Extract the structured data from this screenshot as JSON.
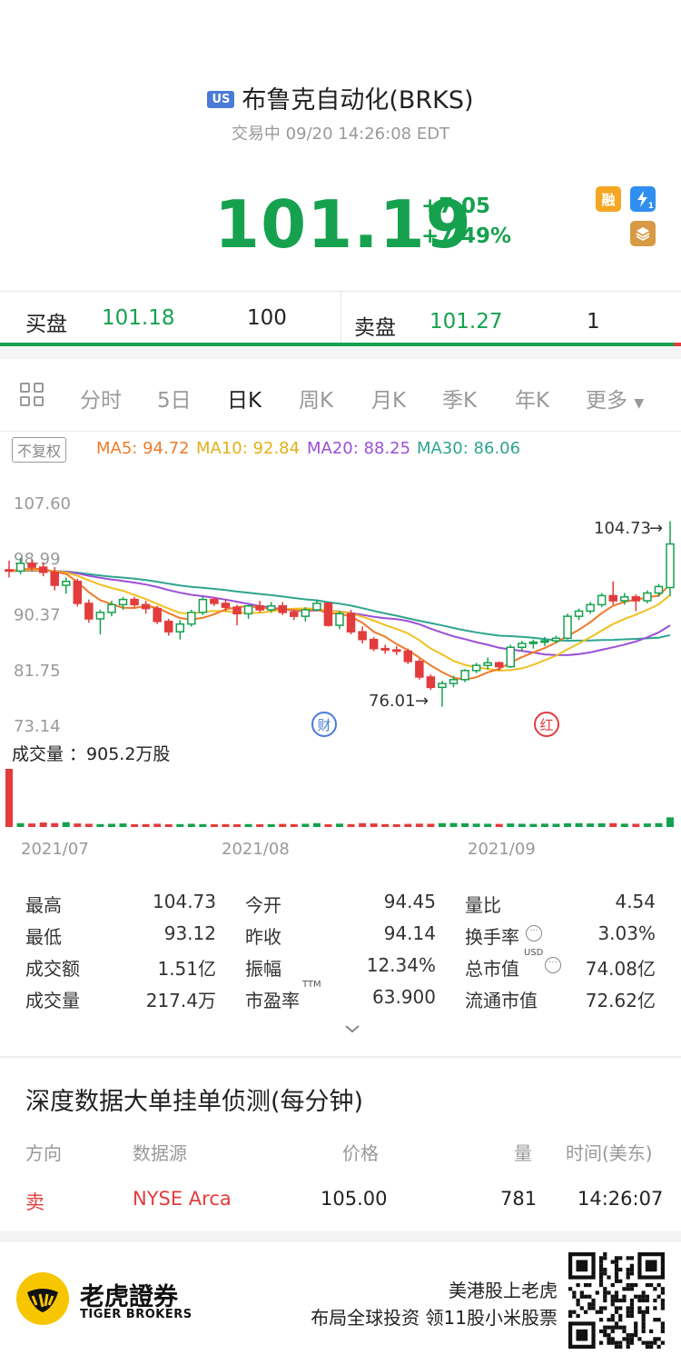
{
  "header": {
    "market_badge": "US",
    "title": "布鲁克自动化(BRKS)",
    "status": "交易中 09/20 14:26:08 EDT"
  },
  "quote": {
    "price": "101.19",
    "change": "+7.05",
    "change_pct": "+7.49%",
    "badges": {
      "margin": "融",
      "lightning": "1"
    }
  },
  "order_book": {
    "bid_label": "买盘",
    "bid_price": "101.18",
    "bid_size": "100",
    "ask_label": "卖盘",
    "ask_price": "101.27",
    "ask_size": "1"
  },
  "tabs": [
    {
      "label": "分时"
    },
    {
      "label": "5日"
    },
    {
      "label": "日K"
    },
    {
      "label": "周K"
    },
    {
      "label": "月K"
    },
    {
      "label": "季K"
    },
    {
      "label": "年K"
    },
    {
      "label": "更多"
    }
  ],
  "ma": {
    "adjust_button": "不复权",
    "ma5": "MA5: 94.72",
    "ma10": "MA10: 92.84",
    "ma20": "MA20: 88.25",
    "ma30": "MA30: 86.06",
    "colors": {
      "ma5": "#f07a2a",
      "ma10": "#f0c020",
      "ma20": "#9b4fd6",
      "ma30": "#2ea58f"
    }
  },
  "chart_data": {
    "type": "candlestick",
    "ylim": [
      73.14,
      107.6
    ],
    "y_ticks": [
      "107.60",
      "98.99",
      "90.37",
      "81.75",
      "73.14"
    ],
    "x_ticks": [
      "2021/07",
      "2021/08",
      "2021/09"
    ],
    "annotations": {
      "high_label": "104.73",
      "low_label": "76.01",
      "event_cai": "财",
      "event_hong": "红"
    },
    "volume_label": "成交量 ：905.2万股",
    "candles": [
      [
        97.2,
        98.6,
        96.0,
        97.0
      ],
      [
        97.0,
        99.0,
        96.5,
        98.2
      ],
      [
        98.2,
        98.8,
        97.0,
        97.6
      ],
      [
        97.6,
        98.4,
        96.2,
        96.8
      ],
      [
        96.8,
        97.6,
        94.0,
        94.8
      ],
      [
        94.8,
        96.0,
        93.5,
        95.4
      ],
      [
        95.4,
        95.8,
        91.5,
        92.0
      ],
      [
        92.0,
        92.6,
        89.0,
        89.6
      ],
      [
        89.6,
        91.0,
        87.2,
        90.6
      ],
      [
        90.6,
        92.4,
        90.0,
        91.8
      ],
      [
        91.8,
        93.0,
        91.0,
        92.6
      ],
      [
        92.6,
        93.0,
        91.4,
        91.8
      ],
      [
        91.8,
        92.4,
        90.4,
        91.2
      ],
      [
        91.2,
        91.6,
        88.8,
        89.2
      ],
      [
        89.2,
        89.6,
        87.0,
        87.6
      ],
      [
        87.6,
        89.4,
        86.4,
        88.8
      ],
      [
        88.8,
        91.0,
        88.4,
        90.6
      ],
      [
        90.6,
        93.0,
        90.2,
        92.6
      ],
      [
        92.6,
        93.0,
        91.6,
        92.0
      ],
      [
        92.0,
        92.6,
        90.8,
        91.4
      ],
      [
        91.4,
        91.8,
        88.6,
        90.4
      ],
      [
        90.4,
        91.8,
        89.6,
        91.6
      ],
      [
        91.6,
        92.4,
        90.6,
        91.0
      ],
      [
        91.0,
        92.2,
        90.6,
        91.6
      ],
      [
        91.6,
        92.2,
        90.2,
        90.6
      ],
      [
        90.6,
        91.0,
        89.4,
        90.0
      ],
      [
        90.0,
        91.4,
        89.2,
        91.0
      ],
      [
        91.0,
        92.6,
        90.8,
        92.0
      ],
      [
        92.0,
        92.2,
        88.4,
        88.6
      ],
      [
        88.6,
        90.8,
        88.0,
        90.4
      ],
      [
        90.4,
        91.0,
        87.2,
        87.6
      ],
      [
        87.6,
        88.4,
        85.8,
        86.4
      ],
      [
        86.4,
        86.8,
        84.6,
        85.0
      ],
      [
        85.0,
        85.6,
        84.2,
        84.8
      ],
      [
        84.8,
        85.4,
        84.0,
        84.6
      ],
      [
        84.6,
        85.0,
        82.6,
        83.0
      ],
      [
        83.0,
        83.4,
        80.2,
        80.6
      ],
      [
        80.6,
        81.0,
        78.6,
        79.0
      ],
      [
        79.0,
        80.0,
        76.01,
        79.6
      ],
      [
        79.6,
        80.8,
        79.0,
        80.2
      ],
      [
        80.2,
        81.8,
        79.8,
        81.6
      ],
      [
        81.6,
        82.8,
        81.2,
        82.4
      ],
      [
        82.4,
        83.6,
        81.8,
        82.8
      ],
      [
        82.8,
        83.0,
        81.6,
        82.2
      ],
      [
        82.2,
        85.6,
        82.0,
        85.2
      ],
      [
        85.2,
        86.2,
        84.6,
        85.8
      ],
      [
        85.8,
        86.4,
        85.0,
        86.0
      ],
      [
        86.0,
        86.8,
        85.4,
        86.2
      ],
      [
        86.2,
        87.0,
        85.8,
        86.6
      ],
      [
        86.6,
        90.4,
        86.4,
        90.0
      ],
      [
        90.0,
        91.2,
        89.4,
        90.8
      ],
      [
        90.8,
        92.2,
        90.4,
        91.8
      ],
      [
        91.8,
        93.6,
        91.4,
        93.2
      ],
      [
        93.2,
        95.4,
        91.8,
        92.4
      ],
      [
        92.4,
        93.6,
        91.8,
        93.0
      ],
      [
        93.0,
        93.4,
        90.8,
        92.4
      ],
      [
        92.4,
        94.0,
        92.0,
        93.6
      ],
      [
        93.6,
        95.0,
        93.0,
        94.6
      ],
      [
        94.45,
        104.73,
        93.12,
        101.19
      ]
    ],
    "volumes": [
      905,
      60,
      55,
      70,
      60,
      75,
      55,
      50,
      45,
      50,
      55,
      40,
      45,
      50,
      40,
      45,
      50,
      45,
      40,
      45,
      42,
      45,
      40,
      44,
      48,
      45,
      50,
      60,
      40,
      52,
      45,
      60,
      55,
      45,
      40,
      48,
      52,
      50,
      60,
      62,
      58,
      52,
      50,
      48,
      55,
      50,
      48,
      52,
      50,
      58,
      60,
      55,
      58,
      60,
      52,
      50,
      55,
      60,
      150
    ]
  },
  "stats": [
    {
      "label": "最高",
      "value": "104.73"
    },
    {
      "label": "今开",
      "value": "94.45"
    },
    {
      "label": "量比",
      "value": "4.54"
    },
    {
      "label": "最低",
      "value": "93.12"
    },
    {
      "label": "昨收",
      "value": "94.14"
    },
    {
      "label": "换手率",
      "value": "3.03%"
    },
    {
      "label": "成交额",
      "value": "1.51亿"
    },
    {
      "label": "振幅",
      "value": "12.34%"
    },
    {
      "label": "总市值",
      "value": "74.08亿"
    },
    {
      "label": "成交量",
      "value": "217.4万"
    },
    {
      "label": "市盈率",
      "value": "63.900"
    },
    {
      "label": "流通市值",
      "value": "72.62亿"
    }
  ],
  "stat_superscripts": {
    "pe": "TTM",
    "mktcap": "USD"
  },
  "deep": {
    "title": "深度数据大单挂单侦测(每分钟)",
    "headers": {
      "direction": "方向",
      "source": "数据源",
      "price": "价格",
      "qty": "量",
      "time": "时间(美东)"
    },
    "row": {
      "direction": "卖",
      "source": "NYSE Arca",
      "price": "105.00",
      "qty": "781",
      "time": "14:26:07"
    }
  },
  "footer": {
    "brand": "老虎證券",
    "brand_en": "TIGER BROKERS",
    "line1": "美港股上老虎",
    "line2": "布局全球投资 领11股小米股票"
  }
}
